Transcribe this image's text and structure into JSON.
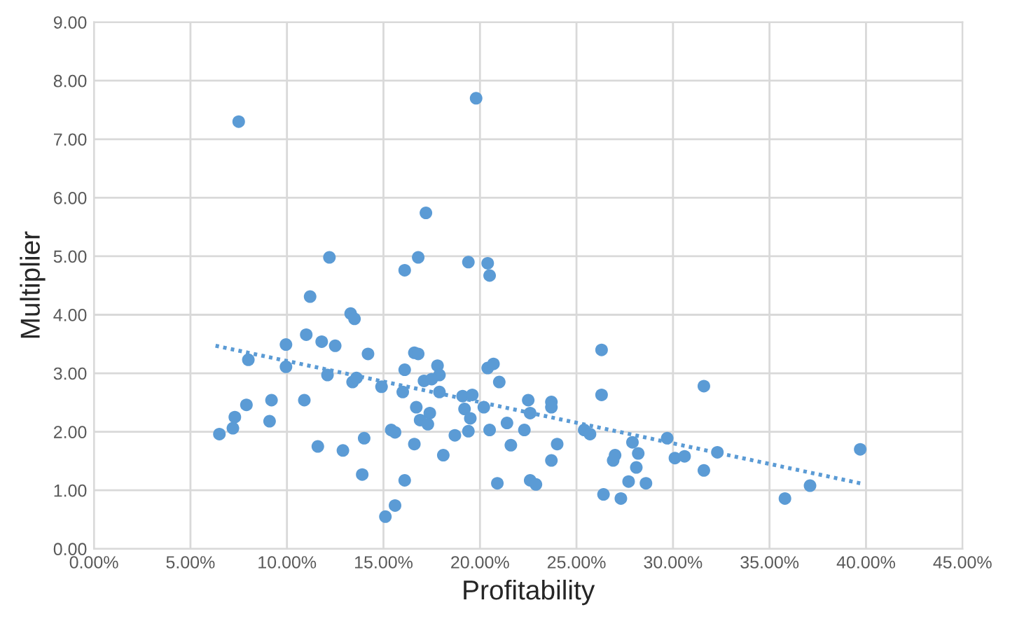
{
  "chart_data": {
    "type": "scatter",
    "xlabel": "Profitability",
    "ylabel": "Multiplier",
    "xlim": [
      0,
      45
    ],
    "ylim": [
      0,
      9
    ],
    "xticks": [
      {
        "value": 0,
        "label": "0.00%"
      },
      {
        "value": 5,
        "label": "5.00%"
      },
      {
        "value": 10,
        "label": "10.00%"
      },
      {
        "value": 15,
        "label": "15.00%"
      },
      {
        "value": 20,
        "label": "20.00%"
      },
      {
        "value": 25,
        "label": "25.00%"
      },
      {
        "value": 30,
        "label": "30.00%"
      },
      {
        "value": 35,
        "label": "35.00%"
      },
      {
        "value": 40,
        "label": "40.00%"
      },
      {
        "value": 45,
        "label": "45.00%"
      }
    ],
    "yticks": [
      {
        "value": 0,
        "label": "0.00"
      },
      {
        "value": 1,
        "label": "1.00"
      },
      {
        "value": 2,
        "label": "2.00"
      },
      {
        "value": 3,
        "label": "3.00"
      },
      {
        "value": 4,
        "label": "4.00"
      },
      {
        "value": 5,
        "label": "5.00"
      },
      {
        "value": 6,
        "label": "6.00"
      },
      {
        "value": 7,
        "label": "7.00"
      },
      {
        "value": 8,
        "label": "8.00"
      },
      {
        "value": 9,
        "label": "9.00"
      }
    ],
    "grid": true,
    "series": [
      {
        "marker": "circle",
        "color": "#5b9bd5",
        "x": [
          6.5,
          7.2,
          7.3,
          7.5,
          7.9,
          8.0,
          9.1,
          9.2,
          9.95,
          9.95,
          10.9,
          11.0,
          11.2,
          11.6,
          11.8,
          12.1,
          12.2,
          12.5,
          12.9,
          13.3,
          13.5,
          13.4,
          13.6,
          14.2,
          14.9,
          14.0,
          13.9,
          15.1,
          19.8,
          17.2,
          16.8,
          16.1,
          19.4,
          20.4,
          20.5,
          16.6,
          16.8,
          16.1,
          17.8,
          17.9,
          17.1,
          17.5,
          16.0,
          17.9,
          19.1,
          19.6,
          19.2,
          16.7,
          17.4,
          16.9,
          17.3,
          19.5,
          20.2,
          20.4,
          20.7,
          21.0,
          15.4,
          15.6,
          16.6,
          18.1,
          18.7,
          19.4,
          20.5,
          21.4,
          22.3,
          21.6,
          22.5,
          22.6,
          23.7,
          23.7,
          24.0,
          23.7,
          16.1,
          20.9,
          22.6,
          22.9,
          15.6,
          25.4,
          25.7,
          26.3,
          26.3,
          26.9,
          27.0,
          27.9,
          28.2,
          28.1,
          27.7,
          28.6,
          26.4,
          27.3,
          29.7,
          30.1,
          30.6,
          31.6,
          31.6,
          32.3,
          35.8,
          37.1,
          39.7
        ],
        "values": [
          1.96,
          2.06,
          2.25,
          7.3,
          2.46,
          3.23,
          2.18,
          2.54,
          3.49,
          3.11,
          2.54,
          3.66,
          4.31,
          1.75,
          3.54,
          2.97,
          4.98,
          3.47,
          1.68,
          4.02,
          3.93,
          2.85,
          2.92,
          3.33,
          2.77,
          1.89,
          1.27,
          0.55,
          7.7,
          5.74,
          4.98,
          4.76,
          4.9,
          4.88,
          4.67,
          3.35,
          3.33,
          3.06,
          3.13,
          2.97,
          2.87,
          2.9,
          2.68,
          2.68,
          2.61,
          2.63,
          2.39,
          2.42,
          2.32,
          2.2,
          2.13,
          2.23,
          2.42,
          3.09,
          3.16,
          2.85,
          2.03,
          1.99,
          1.79,
          1.6,
          1.94,
          2.01,
          2.03,
          2.15,
          2.03,
          1.77,
          2.54,
          2.32,
          2.51,
          2.42,
          1.79,
          1.51,
          1.17,
          1.12,
          1.17,
          1.1,
          0.74,
          2.03,
          1.96,
          3.4,
          2.63,
          1.51,
          1.6,
          1.82,
          1.63,
          1.39,
          1.15,
          1.12,
          0.93,
          0.86,
          1.89,
          1.55,
          1.58,
          2.78,
          1.34,
          1.65,
          0.86,
          1.08,
          1.7
        ]
      },
      {
        "type": "line",
        "color": "#5b9bd5",
        "line_style": "dotted",
        "x": [
          6.3,
          39.7
        ],
        "values": [
          3.47,
          1.12
        ]
      }
    ]
  }
}
